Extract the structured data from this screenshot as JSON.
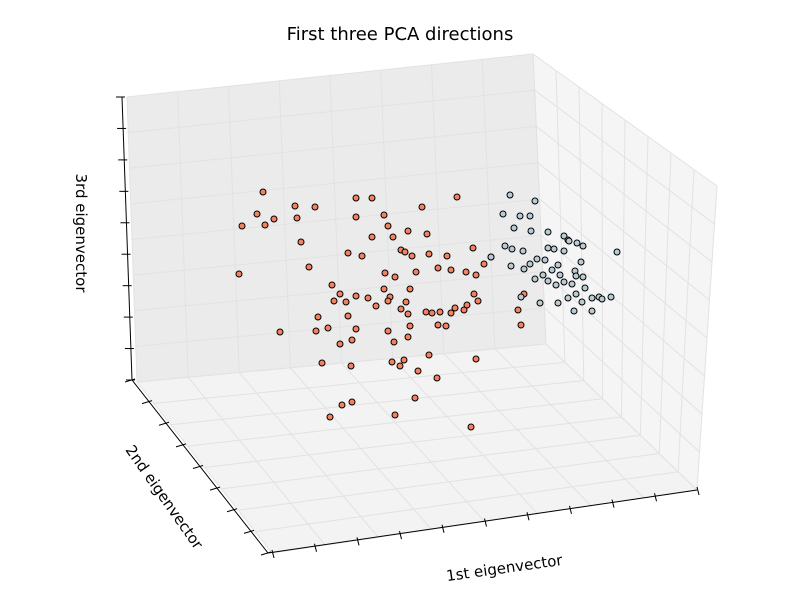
{
  "chart_data": {
    "type": "scatter",
    "title": "First three PCA directions",
    "xlabel": "1st eigenvector",
    "ylabel": "2nd eigenvector",
    "zlabel": "3rd eigenvector",
    "grid": true,
    "tick_labels_visible": false,
    "colors": {
      "pane_back": "#ebebeb",
      "pane_side": "#f5f5f5",
      "pane_floor": "#f3f3f3",
      "grid": "#e2e2e2",
      "axis": "#000000",
      "marker_edge": "#000000"
    },
    "series": [
      {
        "color": "#f4825f",
        "points": [
          [
            263,
            192
          ],
          [
            242,
            226
          ],
          [
            257,
            214
          ],
          [
            265,
            225
          ],
          [
            274,
            219
          ],
          [
            295,
            206
          ],
          [
            297,
            218
          ],
          [
            315,
            207
          ],
          [
            356,
            198
          ],
          [
            372,
            198
          ],
          [
            356,
            217
          ],
          [
            384,
            215
          ],
          [
            388,
            226
          ],
          [
            372,
            237
          ],
          [
            393,
            237
          ],
          [
            408,
            231
          ],
          [
            422,
            207
          ],
          [
            427,
            234
          ],
          [
            457,
            197
          ],
          [
            301,
            242
          ],
          [
            348,
            253
          ],
          [
            362,
            256
          ],
          [
            401,
            250
          ],
          [
            405,
            252
          ],
          [
            412,
            256
          ],
          [
            429,
            254
          ],
          [
            447,
            256
          ],
          [
            451,
            270
          ],
          [
            466,
            272
          ],
          [
            473,
            248
          ],
          [
            476,
            275
          ],
          [
            484,
            264
          ],
          [
            491,
            257
          ],
          [
            309,
            267
          ],
          [
            332,
            285
          ],
          [
            340,
            294
          ],
          [
            356,
            296
          ],
          [
            368,
            298
          ],
          [
            385,
            273
          ],
          [
            395,
            277
          ],
          [
            384,
            289
          ],
          [
            390,
            297
          ],
          [
            410,
            289
          ],
          [
            406,
            302
          ],
          [
            416,
            272
          ],
          [
            438,
            268
          ],
          [
            334,
            301
          ],
          [
            346,
            302
          ],
          [
            348,
            316
          ],
          [
            356,
            329
          ],
          [
            376,
            306
          ],
          [
            388,
            301
          ],
          [
            401,
            309
          ],
          [
            408,
            314
          ],
          [
            426,
            312
          ],
          [
            432,
            313
          ],
          [
            440,
            312
          ],
          [
            451,
            313
          ],
          [
            455,
            308
          ],
          [
            464,
            310
          ],
          [
            467,
            305
          ],
          [
            478,
            301
          ],
          [
            474,
            294
          ],
          [
            280,
            332
          ],
          [
            318,
            317
          ],
          [
            328,
            328
          ],
          [
            316,
            331
          ],
          [
            340,
            344
          ],
          [
            352,
            340
          ],
          [
            322,
            363
          ],
          [
            351,
            366
          ],
          [
            388,
            331
          ],
          [
            394,
            342
          ],
          [
            392,
            362
          ],
          [
            400,
            366
          ],
          [
            404,
            360
          ],
          [
            408,
            337
          ],
          [
            410,
            326
          ],
          [
            429,
            355
          ],
          [
            418,
            371
          ],
          [
            437,
            378
          ],
          [
            476,
            359
          ],
          [
            415,
            398
          ],
          [
            342,
            405
          ],
          [
            352,
            402
          ],
          [
            330,
            417
          ],
          [
            395,
            415
          ],
          [
            471,
            427
          ],
          [
            518,
            310
          ],
          [
            524,
            294
          ],
          [
            521,
            325
          ],
          [
            239,
            274
          ],
          [
            438,
            325
          ],
          [
            446,
            326
          ]
        ]
      },
      {
        "color": "#b9cbd4",
        "points": [
          [
            510,
            195
          ],
          [
            535,
            201
          ],
          [
            503,
            214
          ],
          [
            520,
            216
          ],
          [
            530,
            216
          ],
          [
            514,
            228
          ],
          [
            531,
            231
          ],
          [
            548,
            232
          ],
          [
            564,
            236
          ],
          [
            568,
            240
          ],
          [
            577,
            243
          ],
          [
            583,
            246
          ],
          [
            569,
            241
          ],
          [
            548,
            248
          ],
          [
            554,
            249
          ],
          [
            564,
            251
          ],
          [
            512,
            249
          ],
          [
            523,
            251
          ],
          [
            505,
            246
          ],
          [
            524,
            269
          ],
          [
            511,
            266
          ],
          [
            530,
            264
          ],
          [
            537,
            259
          ],
          [
            545,
            260
          ],
          [
            558,
            265
          ],
          [
            575,
            271
          ],
          [
            581,
            262
          ],
          [
            560,
            275
          ],
          [
            552,
            270
          ],
          [
            543,
            275
          ],
          [
            535,
            279
          ],
          [
            556,
            285
          ],
          [
            564,
            282
          ],
          [
            572,
            284
          ],
          [
            583,
            277
          ],
          [
            558,
            303
          ],
          [
            568,
            298
          ],
          [
            576,
            294
          ],
          [
            585,
            288
          ],
          [
            582,
            302
          ],
          [
            592,
            298
          ],
          [
            599,
            297
          ],
          [
            611,
            297
          ],
          [
            602,
            299
          ],
          [
            574,
            311
          ],
          [
            592,
            311
          ],
          [
            540,
            303
          ],
          [
            617,
            252
          ],
          [
            491,
            257
          ],
          [
            521,
            297
          ],
          [
            576,
            276
          ],
          [
            548,
            281
          ]
        ]
      }
    ]
  }
}
